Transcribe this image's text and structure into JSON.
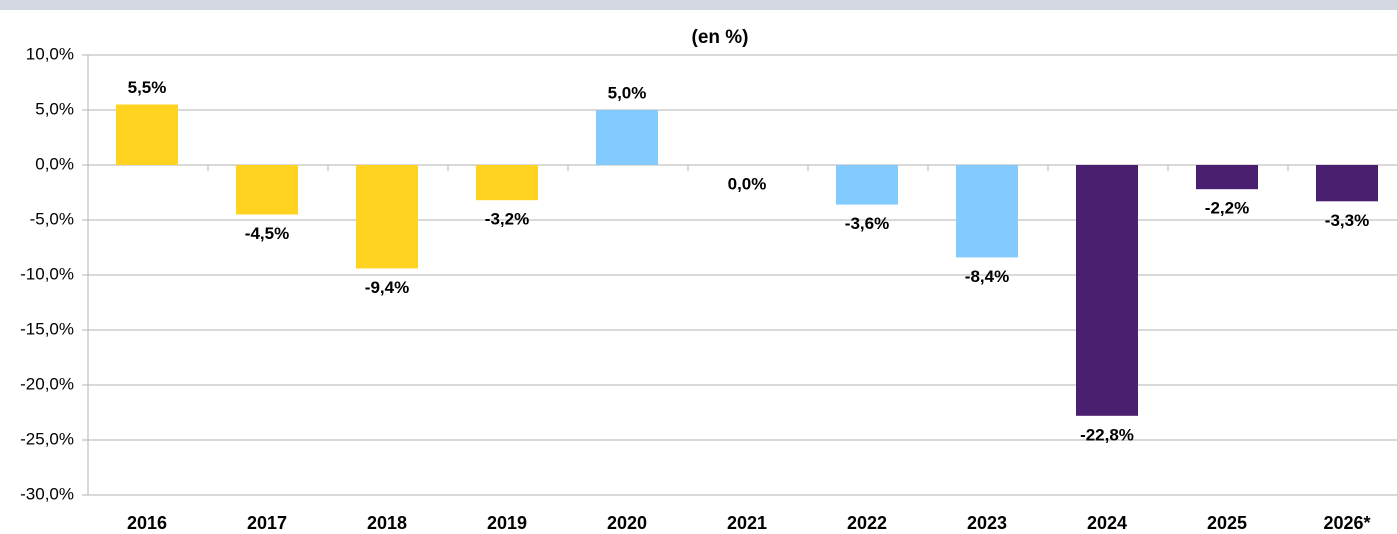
{
  "chart_data": {
    "type": "bar",
    "title": "(en %)",
    "categories": [
      "2016",
      "2017",
      "2018",
      "2019",
      "2020",
      "2021",
      "2022",
      "2023",
      "2024",
      "2025",
      "2026*"
    ],
    "values": [
      5.5,
      -4.5,
      -9.4,
      -3.2,
      5.0,
      0.0,
      -3.6,
      -8.4,
      -22.8,
      -2.2,
      -3.3
    ],
    "value_labels": [
      "5,5%",
      "-4,5%",
      "-9,4%",
      "-3,2%",
      "5,0%",
      "0,0%",
      "-3,6%",
      "-8,4%",
      "-22,8%",
      "-2,2%",
      "-3,3%"
    ],
    "colors": [
      "#ffd320",
      "#ffd320",
      "#ffd320",
      "#ffd320",
      "#83caff",
      "#83caff",
      "#83caff",
      "#83caff",
      "#4b1f6f",
      "#4b1f6f",
      "#4b1f6f"
    ],
    "ylim": [
      -30,
      10
    ],
    "yticks": [
      {
        "value": -30,
        "label": "-30,0%"
      },
      {
        "value": -25,
        "label": "-25,0%"
      },
      {
        "value": -20,
        "label": "-20,0%"
      },
      {
        "value": -15,
        "label": "-15,0%"
      },
      {
        "value": -10,
        "label": "-10,0%"
      },
      {
        "value": -5,
        "label": "-5,0%"
      },
      {
        "value": 0,
        "label": "0,0%"
      },
      {
        "value": 5,
        "label": "5,0%"
      },
      {
        "value": 10,
        "label": "10,0%"
      }
    ],
    "grid": true
  }
}
